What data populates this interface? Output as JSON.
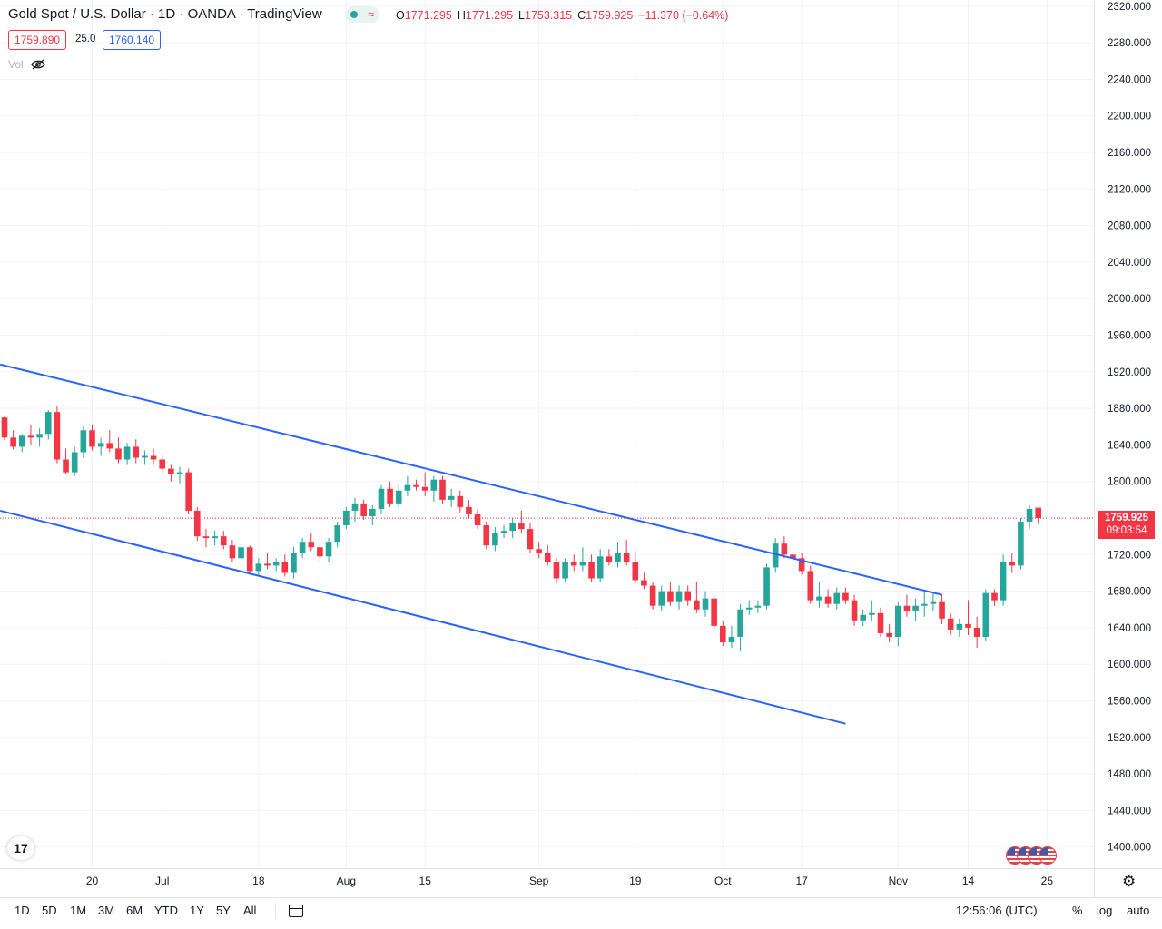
{
  "header": {
    "title": "Gold Spot / U.S. Dollar · 1D · OANDA · TradingView",
    "ohlc": [
      {
        "label": "O",
        "value": "1771.295"
      },
      {
        "label": "H",
        "value": "1771.295"
      },
      {
        "label": "L",
        "value": "1753.315"
      },
      {
        "label": "C",
        "value": "1759.925"
      }
    ],
    "change": "−11.370 (−0.64%)",
    "sell_price": "1759.890",
    "spread": "25.0",
    "buy_price": "1760.140",
    "vol_label": "Vol",
    "status_wave": "≈"
  },
  "last_price": {
    "value": "1759.925",
    "countdown": "09:03:54"
  },
  "timeframes": [
    "1D",
    "5D",
    "1M",
    "3M",
    "6M",
    "YTD",
    "1Y",
    "5Y",
    "All"
  ],
  "bottom_right": {
    "time": "12:56:06 (UTC)",
    "percent": "%",
    "log": "log",
    "auto": "auto"
  },
  "logo_text": "17",
  "icons": {
    "settings": "gear-icon",
    "date_range": "calendar-icon",
    "hide": "eye-off-icon",
    "events": "us-flag-icon"
  },
  "colors": {
    "up": "#26a69a",
    "down": "#f23645",
    "trendline": "#2962ff",
    "grid": "#f0f3fa"
  },
  "chart_data": {
    "type": "candlestick",
    "y_ticks": [
      1400,
      1440,
      1480,
      1520,
      1560,
      1600,
      1640,
      1680,
      1720,
      1760,
      1800,
      1840,
      1880,
      1920,
      1960,
      2000,
      2040,
      2080,
      2120,
      2160,
      2200,
      2240,
      2280,
      2320
    ],
    "y_tick_labels": [
      "1400.000",
      "1440.000",
      "1480.000",
      "1520.000",
      "1560.000",
      "1600.000",
      "1640.000",
      "1680.000",
      "1720.000",
      "1760.000",
      "1800.000",
      "1840.000",
      "1880.000",
      "1920.000",
      "1960.000",
      "2000.000",
      "2040.000",
      "2080.000",
      "2120.000",
      "2160.000",
      "2200.000",
      "2240.000",
      "2280.000",
      "2320.000"
    ],
    "ylim": [
      1375,
      2330
    ],
    "x_tick_labels": [
      {
        "label": "20",
        "bar": 10
      },
      {
        "label": "Jul",
        "bar": 18
      },
      {
        "label": "18",
        "bar": 29
      },
      {
        "label": "Aug",
        "bar": 39
      },
      {
        "label": "15",
        "bar": 48
      },
      {
        "label": "Sep",
        "bar": 61
      },
      {
        "label": "19",
        "bar": 72
      },
      {
        "label": "Oct",
        "bar": 82
      },
      {
        "label": "17",
        "bar": 91
      },
      {
        "label": "Nov",
        "bar": 102
      },
      {
        "label": "14",
        "bar": 110
      },
      {
        "label": "25",
        "bar": 119
      }
    ],
    "candles": [
      [
        1870,
        1872,
        1845,
        1848
      ],
      [
        1848,
        1856,
        1835,
        1838
      ],
      [
        1838,
        1852,
        1832,
        1850
      ],
      [
        1850,
        1862,
        1840,
        1848
      ],
      [
        1848,
        1858,
        1838,
        1852
      ],
      [
        1852,
        1878,
        1846,
        1876
      ],
      [
        1876,
        1882,
        1820,
        1824
      ],
      [
        1824,
        1836,
        1808,
        1810
      ],
      [
        1810,
        1838,
        1806,
        1832
      ],
      [
        1832,
        1860,
        1826,
        1856
      ],
      [
        1856,
        1862,
        1834,
        1838
      ],
      [
        1838,
        1848,
        1828,
        1842
      ],
      [
        1842,
        1856,
        1832,
        1836
      ],
      [
        1836,
        1848,
        1820,
        1824
      ],
      [
        1824,
        1842,
        1818,
        1838
      ],
      [
        1838,
        1846,
        1820,
        1826
      ],
      [
        1826,
        1834,
        1818,
        1828
      ],
      [
        1828,
        1836,
        1818,
        1824
      ],
      [
        1824,
        1830,
        1808,
        1814
      ],
      [
        1814,
        1818,
        1800,
        1808
      ],
      [
        1808,
        1816,
        1798,
        1810
      ],
      [
        1810,
        1814,
        1764,
        1768
      ],
      [
        1768,
        1772,
        1735,
        1740
      ],
      [
        1740,
        1748,
        1728,
        1738
      ],
      [
        1738,
        1746,
        1730,
        1740
      ],
      [
        1740,
        1746,
        1726,
        1730
      ],
      [
        1730,
        1736,
        1712,
        1716
      ],
      [
        1716,
        1732,
        1712,
        1728
      ],
      [
        1728,
        1730,
        1698,
        1702
      ],
      [
        1702,
        1716,
        1696,
        1710
      ],
      [
        1710,
        1722,
        1704,
        1708
      ],
      [
        1708,
        1716,
        1702,
        1712
      ],
      [
        1712,
        1720,
        1696,
        1700
      ],
      [
        1700,
        1728,
        1694,
        1722
      ],
      [
        1722,
        1738,
        1716,
        1734
      ],
      [
        1734,
        1744,
        1724,
        1728
      ],
      [
        1728,
        1732,
        1712,
        1718
      ],
      [
        1718,
        1738,
        1712,
        1734
      ],
      [
        1734,
        1756,
        1728,
        1752
      ],
      [
        1752,
        1772,
        1748,
        1768
      ],
      [
        1768,
        1782,
        1756,
        1776
      ],
      [
        1776,
        1780,
        1758,
        1762
      ],
      [
        1762,
        1774,
        1752,
        1770
      ],
      [
        1770,
        1796,
        1764,
        1792
      ],
      [
        1792,
        1800,
        1772,
        1776
      ],
      [
        1776,
        1798,
        1770,
        1790
      ],
      [
        1790,
        1806,
        1784,
        1796
      ],
      [
        1796,
        1802,
        1790,
        1794
      ],
      [
        1794,
        1810,
        1784,
        1790
      ],
      [
        1790,
        1806,
        1778,
        1802
      ],
      [
        1802,
        1806,
        1776,
        1780
      ],
      [
        1780,
        1792,
        1772,
        1784
      ],
      [
        1784,
        1790,
        1766,
        1772
      ],
      [
        1772,
        1780,
        1760,
        1764
      ],
      [
        1764,
        1770,
        1748,
        1752
      ],
      [
        1752,
        1756,
        1726,
        1730
      ],
      [
        1730,
        1750,
        1724,
        1744
      ],
      [
        1744,
        1752,
        1738,
        1746
      ],
      [
        1746,
        1760,
        1738,
        1754
      ],
      [
        1754,
        1768,
        1744,
        1748
      ],
      [
        1748,
        1754,
        1722,
        1726
      ],
      [
        1726,
        1734,
        1716,
        1722
      ],
      [
        1722,
        1730,
        1708,
        1712
      ],
      [
        1712,
        1716,
        1688,
        1694
      ],
      [
        1694,
        1716,
        1690,
        1712
      ],
      [
        1712,
        1720,
        1702,
        1708
      ],
      [
        1708,
        1728,
        1702,
        1712
      ],
      [
        1712,
        1720,
        1690,
        1694
      ],
      [
        1694,
        1726,
        1690,
        1718
      ],
      [
        1718,
        1726,
        1708,
        1712
      ],
      [
        1712,
        1734,
        1706,
        1722
      ],
      [
        1722,
        1736,
        1708,
        1712
      ],
      [
        1712,
        1724,
        1688,
        1692
      ],
      [
        1692,
        1700,
        1682,
        1686
      ],
      [
        1686,
        1690,
        1660,
        1664
      ],
      [
        1664,
        1686,
        1658,
        1680
      ],
      [
        1680,
        1690,
        1664,
        1668
      ],
      [
        1668,
        1686,
        1660,
        1680
      ],
      [
        1680,
        1686,
        1664,
        1670
      ],
      [
        1670,
        1690,
        1656,
        1660
      ],
      [
        1660,
        1680,
        1652,
        1672
      ],
      [
        1672,
        1676,
        1636,
        1642
      ],
      [
        1642,
        1648,
        1620,
        1624
      ],
      [
        1624,
        1642,
        1618,
        1630
      ],
      [
        1630,
        1666,
        1614,
        1660
      ],
      [
        1660,
        1670,
        1654,
        1662
      ],
      [
        1662,
        1670,
        1656,
        1664
      ],
      [
        1664,
        1710,
        1660,
        1706
      ],
      [
        1706,
        1738,
        1700,
        1732
      ],
      [
        1732,
        1740,
        1716,
        1720
      ],
      [
        1720,
        1730,
        1710,
        1716
      ],
      [
        1716,
        1722,
        1698,
        1702
      ],
      [
        1702,
        1708,
        1666,
        1670
      ],
      [
        1670,
        1690,
        1662,
        1674
      ],
      [
        1674,
        1682,
        1662,
        1666
      ],
      [
        1666,
        1684,
        1660,
        1678
      ],
      [
        1678,
        1684,
        1666,
        1670
      ],
      [
        1670,
        1676,
        1642,
        1648
      ],
      [
        1648,
        1660,
        1642,
        1654
      ],
      [
        1654,
        1670,
        1648,
        1656
      ],
      [
        1656,
        1662,
        1630,
        1634
      ],
      [
        1634,
        1644,
        1624,
        1630
      ],
      [
        1630,
        1668,
        1620,
        1664
      ],
      [
        1664,
        1676,
        1652,
        1658
      ],
      [
        1658,
        1672,
        1648,
        1664
      ],
      [
        1664,
        1680,
        1652,
        1666
      ],
      [
        1666,
        1678,
        1658,
        1668
      ],
      [
        1668,
        1676,
        1644,
        1650
      ],
      [
        1650,
        1656,
        1632,
        1638
      ],
      [
        1638,
        1650,
        1630,
        1644
      ],
      [
        1644,
        1670,
        1632,
        1640
      ],
      [
        1640,
        1652,
        1618,
        1630
      ],
      [
        1630,
        1682,
        1626,
        1678
      ],
      [
        1678,
        1682,
        1664,
        1670
      ],
      [
        1670,
        1720,
        1664,
        1712
      ],
      [
        1712,
        1722,
        1700,
        1708
      ],
      [
        1708,
        1760,
        1704,
        1756
      ],
      [
        1756,
        1774,
        1748,
        1770
      ],
      [
        1771.295,
        1771.295,
        1753.315,
        1759.925
      ]
    ],
    "trendlines": [
      {
        "from": {
          "bar": -0.5,
          "price": 1928
        },
        "to": {
          "bar": 107,
          "price": 1676
        }
      },
      {
        "from": {
          "bar": -0.5,
          "price": 1768
        },
        "to": {
          "bar": 96,
          "price": 1535
        }
      }
    ],
    "last_price_line": 1759.925
  }
}
